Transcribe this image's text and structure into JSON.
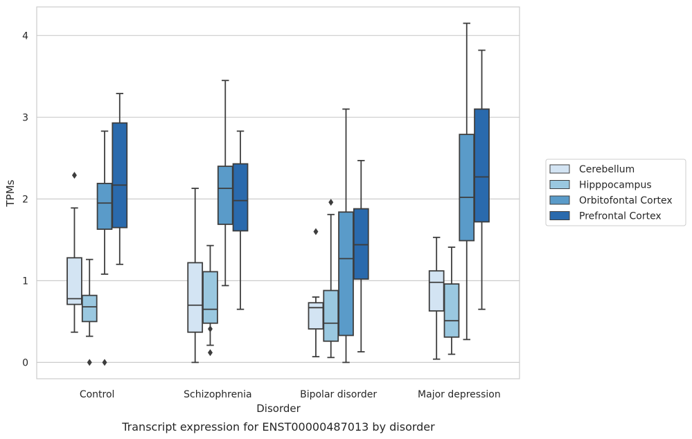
{
  "caption": "Transcript expression for ENST00000487013 by disorder",
  "chart_data": {
    "type": "box",
    "title": "",
    "xlabel": "Disorder",
    "ylabel": "TPMs",
    "ylim": [
      -0.2,
      4.35
    ],
    "yticks": [
      0,
      1,
      2,
      3,
      4
    ],
    "categories": [
      "Control",
      "Schizophrenia",
      "Bipolar disorder",
      "Major depression"
    ],
    "grid": "horizontal",
    "legend_position": "right",
    "series": [
      {
        "name": "Cerebellum",
        "color": "#d3e4f3",
        "boxes": [
          {
            "whislo": 0.37,
            "q1": 0.71,
            "med": 0.78,
            "q3": 1.28,
            "whishi": 1.89,
            "fliers": [
              2.29
            ]
          },
          {
            "whislo": 0.0,
            "q1": 0.37,
            "med": 0.7,
            "q3": 1.22,
            "whishi": 2.13,
            "fliers": []
          },
          {
            "whislo": 0.07,
            "q1": 0.41,
            "med": 0.67,
            "q3": 0.73,
            "whishi": 0.8,
            "fliers": [
              1.6
            ]
          },
          {
            "whislo": 0.04,
            "q1": 0.63,
            "med": 0.98,
            "q3": 1.12,
            "whishi": 1.53,
            "fliers": []
          }
        ]
      },
      {
        "name": "Hipppocampus",
        "color": "#9ac8e0",
        "boxes": [
          {
            "whislo": 0.32,
            "q1": 0.5,
            "med": 0.68,
            "q3": 0.82,
            "whishi": 1.26,
            "fliers": [
              0.0
            ]
          },
          {
            "whislo": 0.21,
            "q1": 0.48,
            "med": 0.65,
            "q3": 1.11,
            "whishi": 1.43,
            "fliers": [
              0.41,
              0.12
            ]
          },
          {
            "whislo": 0.06,
            "q1": 0.26,
            "med": 0.48,
            "q3": 0.88,
            "whishi": 1.81,
            "fliers": [
              1.96
            ]
          },
          {
            "whislo": 0.1,
            "q1": 0.31,
            "med": 0.51,
            "q3": 0.96,
            "whishi": 1.41,
            "fliers": []
          }
        ]
      },
      {
        "name": "Orbitofontal Cortex",
        "color": "#5a9bc9",
        "boxes": [
          {
            "whislo": 1.08,
            "q1": 1.63,
            "med": 1.95,
            "q3": 2.19,
            "whishi": 2.83,
            "fliers": [
              0.0
            ]
          },
          {
            "whislo": 0.94,
            "q1": 1.69,
            "med": 2.13,
            "q3": 2.4,
            "whishi": 3.45,
            "fliers": []
          },
          {
            "whislo": 0.0,
            "q1": 0.33,
            "med": 1.27,
            "q3": 1.84,
            "whishi": 3.1,
            "fliers": []
          },
          {
            "whislo": 0.28,
            "q1": 1.49,
            "med": 2.02,
            "q3": 2.79,
            "whishi": 4.15,
            "fliers": []
          }
        ]
      },
      {
        "name": "Prefrontal Cortex",
        "color": "#2a6aad",
        "boxes": [
          {
            "whislo": 1.2,
            "q1": 1.65,
            "med": 2.17,
            "q3": 2.93,
            "whishi": 3.29,
            "fliers": []
          },
          {
            "whislo": 0.65,
            "q1": 1.61,
            "med": 1.98,
            "q3": 2.43,
            "whishi": 2.83,
            "fliers": []
          },
          {
            "whislo": 0.13,
            "q1": 1.02,
            "med": 1.44,
            "q3": 1.88,
            "whishi": 2.47,
            "fliers": []
          },
          {
            "whislo": 0.65,
            "q1": 1.72,
            "med": 2.27,
            "q3": 3.1,
            "whishi": 3.82,
            "fliers": []
          }
        ]
      }
    ]
  }
}
